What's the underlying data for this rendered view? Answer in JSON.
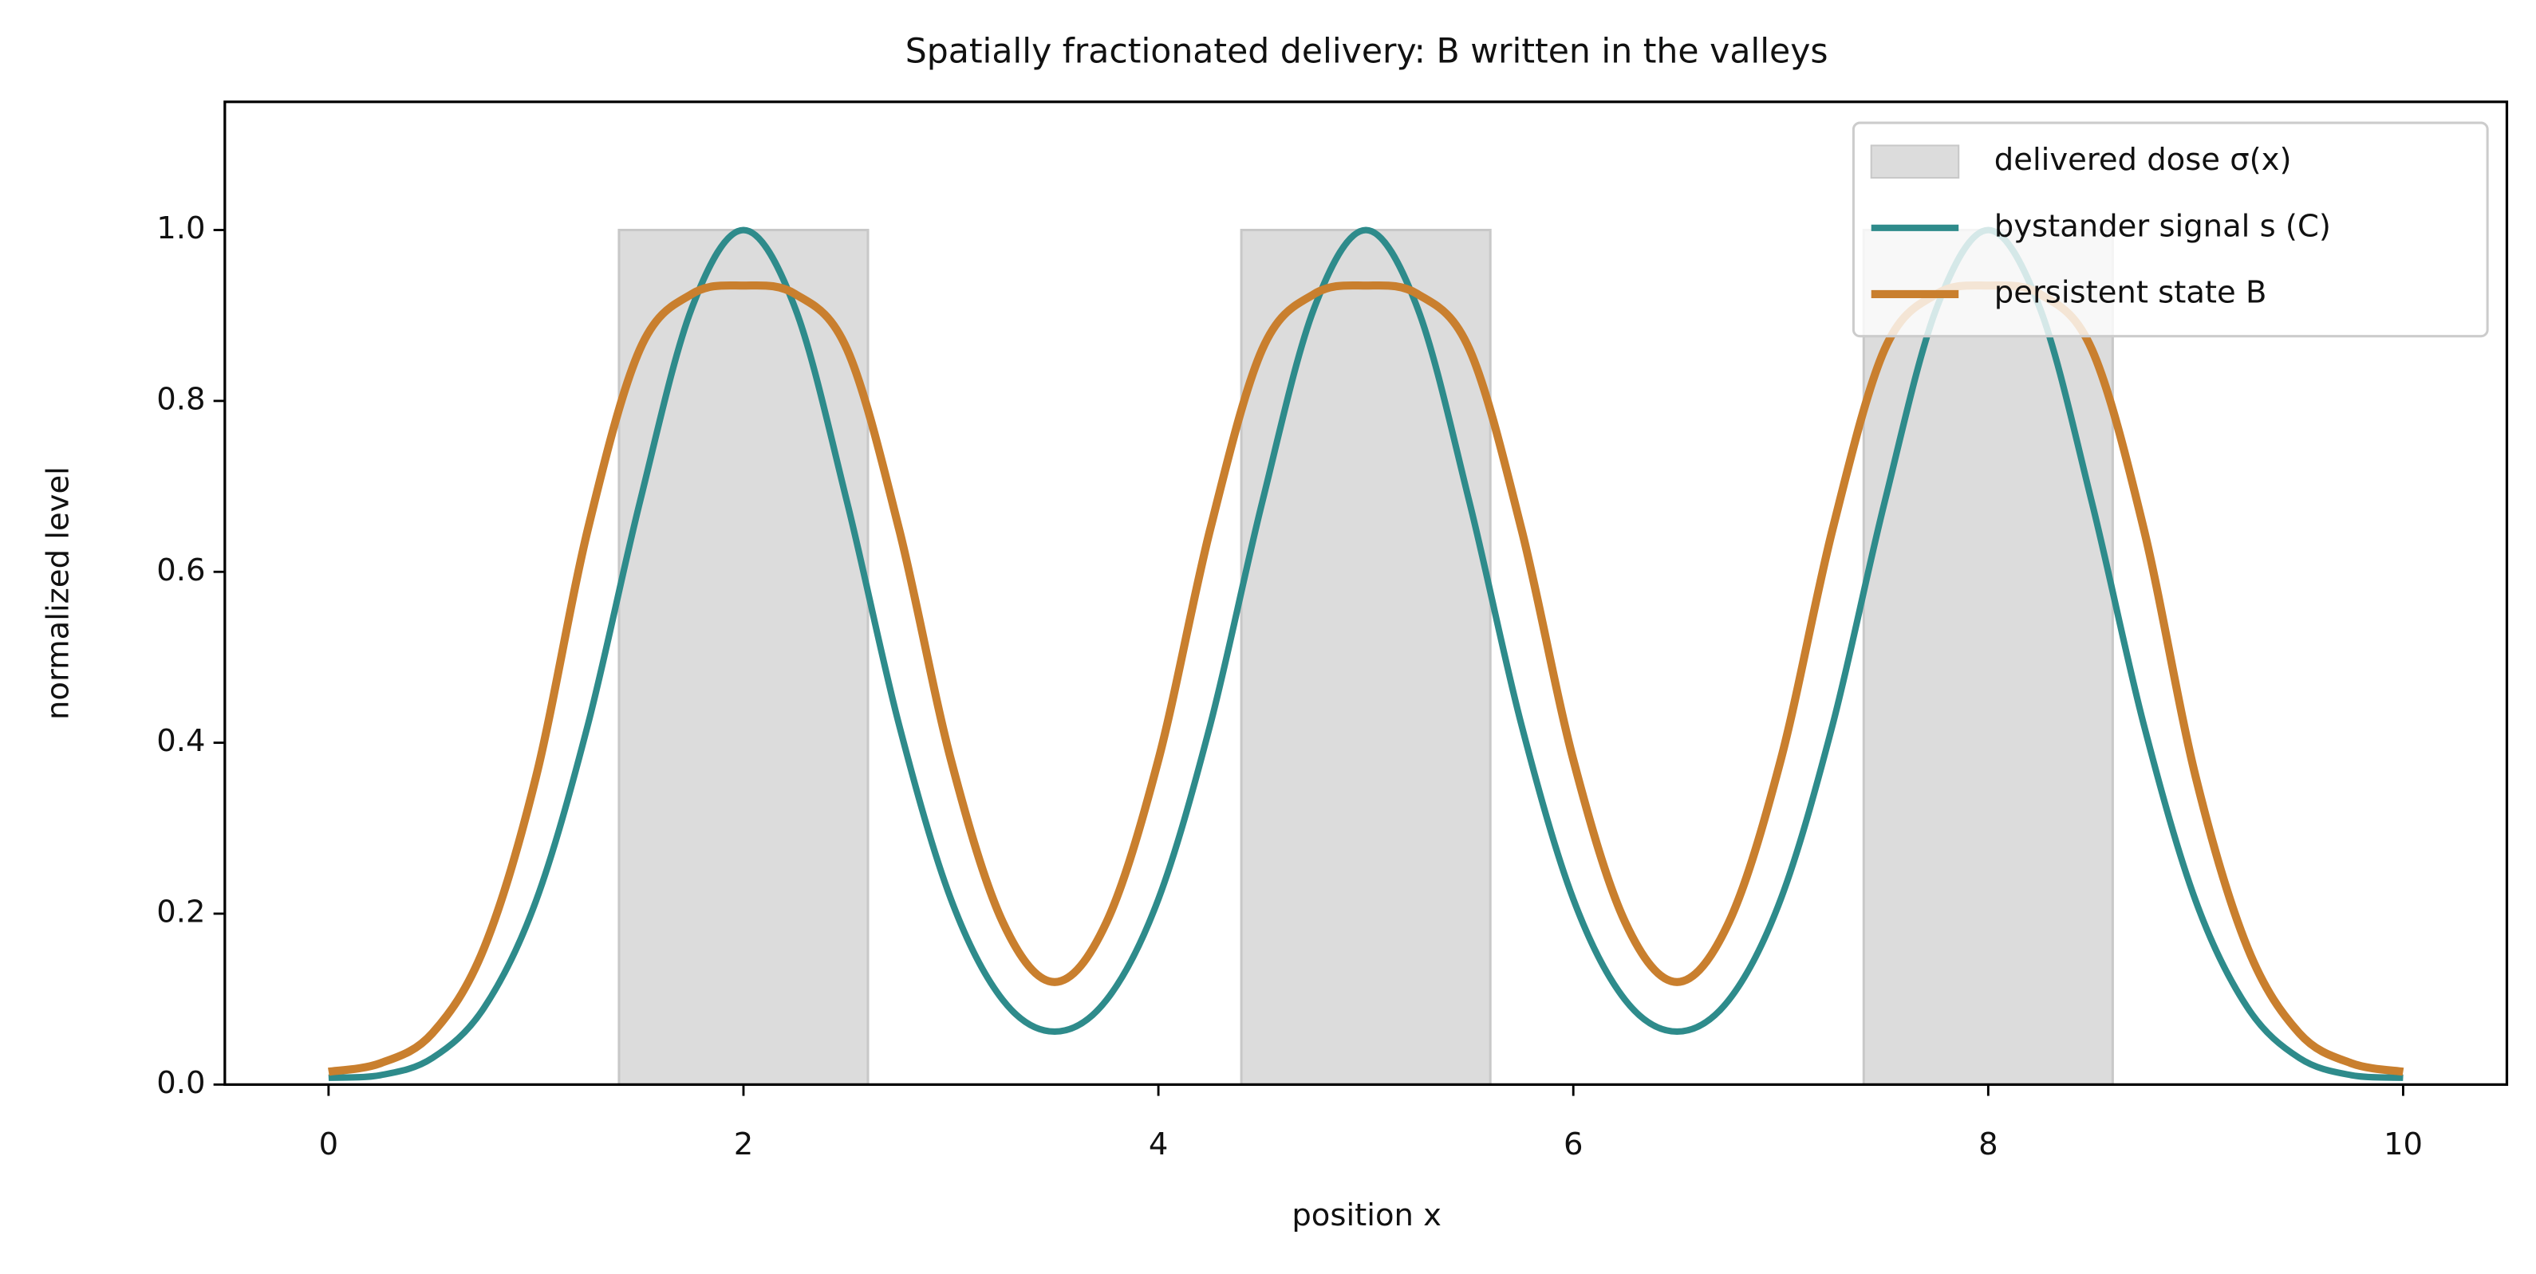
{
  "chart_data": {
    "type": "line",
    "title": "Spatially fractionated delivery: B written in the valleys",
    "x_label": "position x",
    "y_label": "normalized level",
    "xlim": [
      -0.5,
      10.5
    ],
    "ylim": [
      0,
      1.15
    ],
    "xticks": [
      0,
      2,
      4,
      6,
      8,
      10
    ],
    "yticks": [
      {
        "value": 0,
        "label": "0.0"
      },
      {
        "value": 0.2,
        "label": "0.2"
      },
      {
        "value": 0.4,
        "label": "0.4"
      },
      {
        "value": 0.6,
        "label": "0.6"
      },
      {
        "value": 0.8,
        "label": "0.8"
      },
      {
        "value": 1,
        "label": "1.0"
      }
    ],
    "legend": "upper right",
    "dose_bars": {
      "name": "delivered dose σ(x)",
      "color": "#dcdcdc",
      "x_start": [
        1.4,
        4.4,
        7.4
      ],
      "x_end": [
        2.6,
        5.6,
        8.6
      ],
      "values": [
        1,
        1,
        1
      ]
    },
    "x": [
      0,
      0.25,
      0.5,
      0.75,
      1,
      1.25,
      1.5,
      1.75,
      2,
      2.25,
      2.5,
      2.75,
      3,
      3.25,
      3.5,
      3.75,
      4,
      4.25,
      4.5,
      4.75,
      5,
      5.25,
      5.5,
      5.75,
      6,
      6.25,
      6.5,
      6.75,
      7,
      7.25,
      7.5,
      7.75,
      8,
      8.25,
      8.5,
      8.75,
      9,
      9.25,
      9.5,
      9.75,
      10
    ],
    "series": [
      {
        "name": "bystander signal s (C)",
        "color": "#2e8b8b",
        "values": [
          0.008,
          0.011,
          0.031,
          0.09,
          0.215,
          0.421,
          0.681,
          0.908,
          1,
          0.908,
          0.681,
          0.421,
          0.217,
          0.099,
          0.062,
          0.099,
          0.217,
          0.421,
          0.681,
          0.908,
          1,
          0.908,
          0.681,
          0.421,
          0.217,
          0.099,
          0.062,
          0.099,
          0.217,
          0.421,
          0.681,
          0.908,
          1,
          0.908,
          0.681,
          0.421,
          0.215,
          0.09,
          0.031,
          0.011,
          0.008
        ]
      },
      {
        "name": "persistent state B",
        "color": "#c97f2e",
        "values": [
          0.015,
          0.025,
          0.06,
          0.16,
          0.36,
          0.65,
          0.86,
          0.925,
          0.935,
          0.925,
          0.86,
          0.65,
          0.38,
          0.19,
          0.12,
          0.19,
          0.38,
          0.65,
          0.86,
          0.925,
          0.935,
          0.925,
          0.86,
          0.65,
          0.38,
          0.19,
          0.12,
          0.19,
          0.38,
          0.65,
          0.86,
          0.925,
          0.935,
          0.925,
          0.86,
          0.65,
          0.36,
          0.16,
          0.06,
          0.025,
          0.015
        ]
      }
    ]
  }
}
